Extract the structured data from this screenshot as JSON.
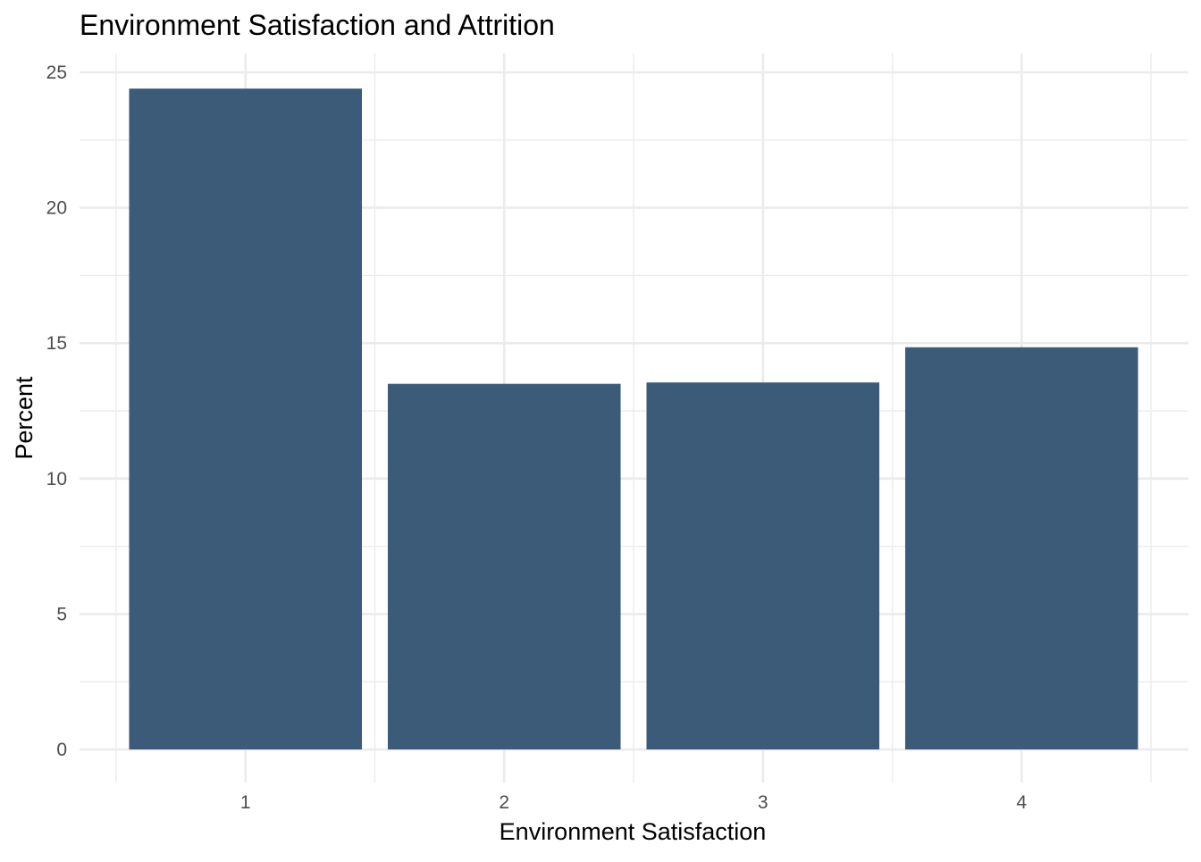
{
  "chart_data": {
    "type": "bar",
    "title": "Environment Satisfaction and Attrition",
    "xlabel": "Environment Satisfaction",
    "ylabel": "Percent",
    "categories": [
      "1",
      "2",
      "3",
      "4"
    ],
    "values": [
      24.4,
      13.5,
      13.55,
      14.85
    ],
    "ylim": [
      0,
      25
    ],
    "y_ticks": [
      "0",
      "5",
      "10",
      "15",
      "20",
      "25"
    ],
    "grid": true,
    "legend": "none",
    "bar_color": "#3B5B78"
  }
}
